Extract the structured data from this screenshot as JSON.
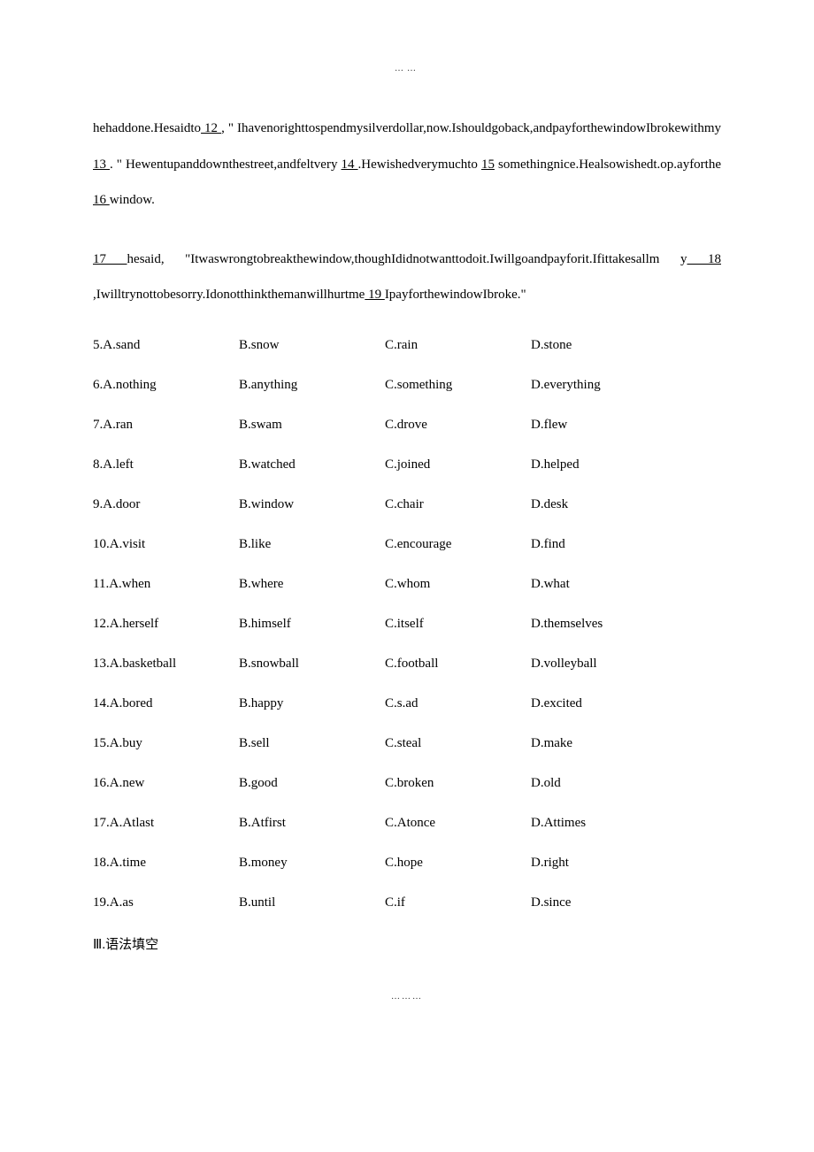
{
  "sectionLabelTop": "……",
  "passage": {
    "line1_pre": "hehaddone.Hesaidto",
    "blank12": "                12                                        ",
    "line1_end": ",",
    "line2": "\" Ihavenorighttospendmysilverdollar,now.Ishouldgoback,andpayforthewindowIbrokewithmy",
    "blank13": "13    ",
    "line3_mid": ". \" Hewentupanddownthestreet,andfeltvery ",
    "blank14": "   14    ",
    "line3_mid2": ".Hewishedverymuchto ",
    "blank15": "   15",
    "line4_pre": "somethingnice.Healsowishedt",
    "line4_dot": ".",
    "line4_mid": "op",
    "line4_dot2": ".",
    "line4_mid2": "ayforthe",
    "blank16": "  16  ",
    "line4_end": "window."
  },
  "para2": {
    "blank17": "                         17                                                    ",
    "line1_end": "hesaid,",
    "line2": "\"Itwaswrongtobreakthewindow,thoughIdidnotwanttodoit.Iwillgoandpayforit.Ifittakesallm",
    "line3_pre": "y",
    "blank18": "  18  ",
    "line3_mid": ",Iwilltrynottobesorry.Idonotthinkthemanwillhurtme",
    "blank19": "  19  ",
    "line3_end": "IpayforthewindowIbroke.\""
  },
  "options": [
    {
      "q": "5.A.sand",
      "b": "B.snow",
      "c": "C.rain",
      "d": "D.stone"
    },
    {
      "q": "6.A.nothing",
      "b": "B.anything",
      "c": "C.something",
      "d": "D.everything"
    },
    {
      "q": "7.A.ran",
      "b": "B.swam",
      "c": "C.drove",
      "d": "D.flew"
    },
    {
      "q": "8.A.left",
      "b": "B.watched",
      "c": "C.joined",
      "d": "D.helped"
    },
    {
      "q": "9.A.door",
      "b": "B.window",
      "c": "C.chair",
      "d": "D.desk"
    },
    {
      "q": "10.A.visit",
      "b": "B.like",
      "c": "C.encourage",
      "d": "D.find"
    },
    {
      "q": "11.A.when",
      "b": "B.where",
      "c": "C.whom",
      "d": "D.what"
    },
    {
      "q": "12.A.herself",
      "b": "B.himself",
      "c": "C.itself",
      "d": "D.themselves"
    },
    {
      "q": "13.A.basketball",
      "b": "B.snowball",
      "c": "C.football",
      "d": "D.volleyball"
    },
    {
      "q": "14.A.bored",
      "b": "B.happy",
      "c": "C.s.ad",
      "d": "D.excited"
    },
    {
      "q": "15.A.buy",
      "b": "B.sell",
      "c": "C.steal",
      "d": "D.make"
    },
    {
      "q": "16.A.new",
      "b": "B.good",
      "c": "C.broken",
      "d": "D.old"
    },
    {
      "q": "17.A.Atlast",
      "b": "B.Atfirst",
      "c": "C.Atonce",
      "d": "D.Attimes"
    },
    {
      "q": "18.A.time",
      "b": "B.money",
      "c": "C.hope",
      "d": "D.right"
    },
    {
      "q": "19.A.as",
      "b": "B.until",
      "c": "C.if",
      "d": "D.since"
    }
  ],
  "sectionHeading": "Ⅲ.语法填空",
  "sectionLabelBottom": "………"
}
